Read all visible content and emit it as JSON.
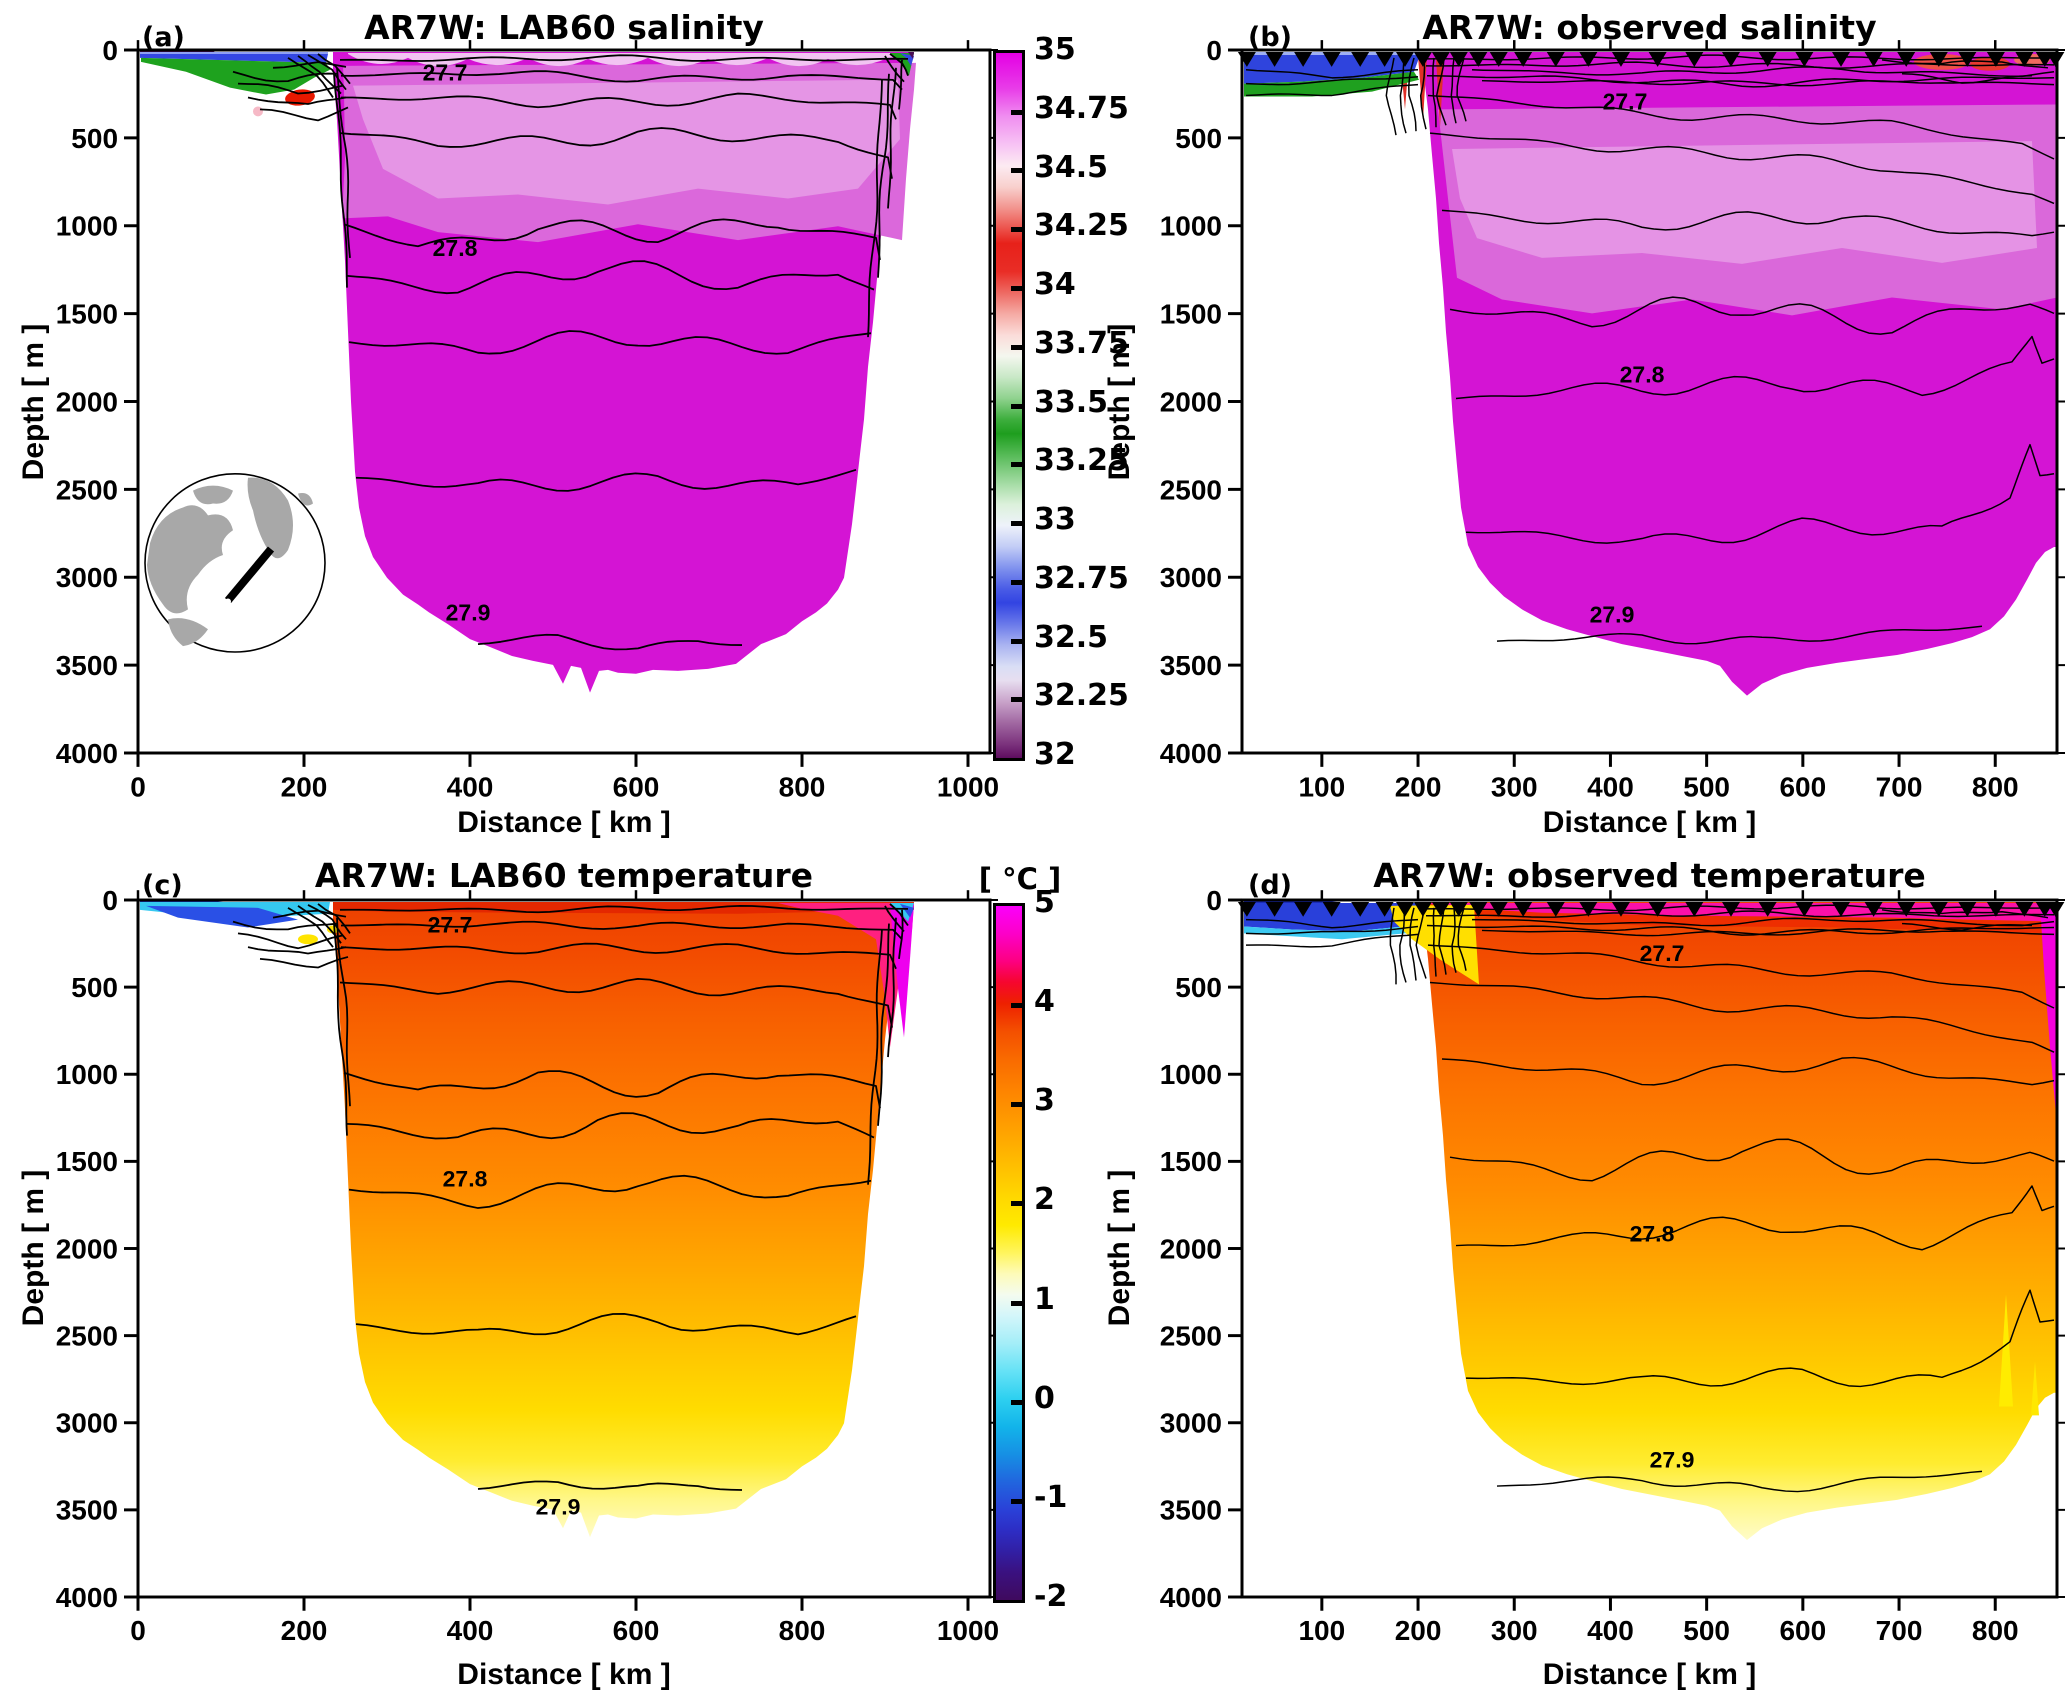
{
  "panels": {
    "a": {
      "letter": "(a)",
      "title": "AR7W: LAB60 salinity",
      "xlabel": "Distance [ km ]",
      "ylabel": "Depth [ m ]",
      "xticks": [
        "0",
        "200",
        "400",
        "600",
        "800",
        "1000"
      ],
      "yticks": [
        "0",
        "500",
        "1000",
        "1500",
        "2000",
        "2500",
        "3000",
        "3500",
        "4000"
      ],
      "contour_labels": [
        "27.7",
        "27.8",
        "27.9"
      ]
    },
    "b": {
      "letter": "(b)",
      "title": "AR7W: observed salinity",
      "xlabel": "Distance [ km ]",
      "ylabel": "Depth [ m ]",
      "xticks": [
        "100",
        "200",
        "300",
        "400",
        "500",
        "600",
        "700",
        "800"
      ],
      "yticks": [
        "0",
        "500",
        "1000",
        "1500",
        "2000",
        "2500",
        "3000",
        "3500",
        "4000"
      ],
      "contour_labels": [
        "27.7",
        "27.8",
        "27.9"
      ]
    },
    "c": {
      "letter": "(c)",
      "title": "AR7W: LAB60 temperature",
      "xlabel": "Distance [ km ]",
      "ylabel": "Depth [ m ]",
      "xticks": [
        "0",
        "200",
        "400",
        "600",
        "800",
        "1000"
      ],
      "yticks": [
        "0",
        "500",
        "1000",
        "1500",
        "2000",
        "2500",
        "3000",
        "3500",
        "4000"
      ],
      "contour_labels": [
        "27.7",
        "27.8",
        "27.9"
      ]
    },
    "d": {
      "letter": "(d)",
      "title": "AR7W: observed temperature",
      "xlabel": "Distance [ km ]",
      "ylabel": "Depth [ m ]",
      "xticks": [
        "100",
        "200",
        "300",
        "400",
        "500",
        "600",
        "700",
        "800"
      ],
      "yticks": [
        "0",
        "500",
        "1000",
        "1500",
        "2000",
        "2500",
        "3000",
        "3500",
        "4000"
      ],
      "contour_labels": [
        "27.7",
        "27.8",
        "27.9"
      ]
    }
  },
  "colorbar_salinity": {
    "ticks": [
      "35",
      "34.75",
      "34.5",
      "34.25",
      "34",
      "33.75",
      "33.5",
      "33.25",
      "33",
      "32.75",
      "32.5",
      "32.25",
      "32"
    ],
    "gradient": [
      {
        "p": 0,
        "c": "#e400e4"
      },
      {
        "p": 5,
        "c": "#e83ce8"
      },
      {
        "p": 9,
        "c": "#f08ef0"
      },
      {
        "p": 13,
        "c": "#f7c3f4"
      },
      {
        "p": 16,
        "c": "#fcebf2"
      },
      {
        "p": 19,
        "c": "#f8d0cd"
      },
      {
        "p": 22,
        "c": "#f2948e"
      },
      {
        "p": 25,
        "c": "#ec5049"
      },
      {
        "p": 27,
        "c": "#e7211a"
      },
      {
        "p": 31,
        "c": "#e92d26"
      },
      {
        "p": 34,
        "c": "#ee6a63"
      },
      {
        "p": 37,
        "c": "#f5aaa4"
      },
      {
        "p": 40,
        "c": "#fbdcd9"
      },
      {
        "p": 43,
        "c": "#f4f7ef"
      },
      {
        "p": 46,
        "c": "#c8e8c6"
      },
      {
        "p": 49,
        "c": "#8fd28e"
      },
      {
        "p": 52,
        "c": "#3dae3d"
      },
      {
        "p": 54,
        "c": "#1e9e1e"
      },
      {
        "p": 57,
        "c": "#56ba57"
      },
      {
        "p": 61,
        "c": "#a3dba3"
      },
      {
        "p": 64,
        "c": "#dcf1db"
      },
      {
        "p": 67,
        "c": "#eef2fa"
      },
      {
        "p": 70,
        "c": "#c3cdf6"
      },
      {
        "p": 73,
        "c": "#8193ee"
      },
      {
        "p": 76,
        "c": "#4a5ce6"
      },
      {
        "p": 78,
        "c": "#3244e2"
      },
      {
        "p": 81,
        "c": "#6a79ea"
      },
      {
        "p": 84,
        "c": "#aab4f1"
      },
      {
        "p": 87,
        "c": "#d9def5"
      },
      {
        "p": 89,
        "c": "#e7def0"
      },
      {
        "p": 92,
        "c": "#c9a3ca"
      },
      {
        "p": 95,
        "c": "#a168a2"
      },
      {
        "p": 98,
        "c": "#7c337d"
      },
      {
        "p": 100,
        "c": "#5e0d60"
      }
    ]
  },
  "colorbar_temperature": {
    "unit_label": "[ °C ]",
    "ticks": [
      "5",
      "4",
      "3",
      "2",
      "1",
      "0",
      "-1",
      "-2"
    ],
    "gradient": [
      {
        "p": 0,
        "c": "#fb00fb"
      },
      {
        "p": 4,
        "c": "#fc00c8"
      },
      {
        "p": 8,
        "c": "#fd0080"
      },
      {
        "p": 11,
        "c": "#f6062e"
      },
      {
        "p": 14,
        "c": "#ee2000"
      },
      {
        "p": 18,
        "c": "#f44f00"
      },
      {
        "p": 22,
        "c": "#f96a00"
      },
      {
        "p": 27,
        "c": "#fe8600"
      },
      {
        "p": 32,
        "c": "#ffa000"
      },
      {
        "p": 37,
        "c": "#ffbc00"
      },
      {
        "p": 42,
        "c": "#ffd800"
      },
      {
        "p": 46,
        "c": "#ffea00"
      },
      {
        "p": 50,
        "c": "#fff55e"
      },
      {
        "p": 53,
        "c": "#fdfbb8"
      },
      {
        "p": 56,
        "c": "#f4fbef"
      },
      {
        "p": 59,
        "c": "#d4f6fa"
      },
      {
        "p": 63,
        "c": "#a4eef8"
      },
      {
        "p": 67,
        "c": "#66e2f6"
      },
      {
        "p": 71,
        "c": "#2ed0f0"
      },
      {
        "p": 75,
        "c": "#12b4ea"
      },
      {
        "p": 79,
        "c": "#1690e4"
      },
      {
        "p": 83,
        "c": "#2165de"
      },
      {
        "p": 87,
        "c": "#2a41d8"
      },
      {
        "p": 90,
        "c": "#2d2dc4"
      },
      {
        "p": 93,
        "c": "#311fa4"
      },
      {
        "p": 96,
        "c": "#3a1180"
      },
      {
        "p": 100,
        "c": "#3f0a5e"
      }
    ]
  },
  "station_markers": {
    "applies_to": [
      "b",
      "d"
    ],
    "positions_rel": [
      0.006,
      0.04,
      0.075,
      0.11,
      0.145,
      0.175,
      0.2,
      0.222,
      0.244,
      0.266,
      0.29,
      0.315,
      0.345,
      0.385,
      0.425,
      0.465,
      0.51,
      0.555,
      0.6,
      0.645,
      0.69,
      0.735,
      0.775,
      0.815,
      0.855,
      0.89,
      0.925,
      0.96,
      0.985,
      0.998
    ]
  },
  "accent_colors": {
    "deep_magenta": "#d414d4",
    "light_magenta": "#e595e5",
    "shelf_blue": "#3447e2",
    "shelf_green": "#1ea21e",
    "warm_orange": "#ff8c00",
    "bottom_yellow": "#ffec30",
    "land_gray": "#a8a8a8"
  },
  "chart_data": [
    {
      "type": "heatmap",
      "panel": "a",
      "title": "AR7W: LAB60 salinity",
      "dataset": "LAB60",
      "variable": "salinity",
      "xlabel": "Distance [ km ]",
      "ylabel": "Depth [ m ]",
      "xticks": [
        0,
        200,
        400,
        600,
        800,
        1000
      ],
      "yticks": [
        0,
        500,
        1000,
        1500,
        2000,
        2500,
        3000,
        3500,
        4000
      ],
      "xlim_km": [
        0,
        1030
      ],
      "depth_range_m": [
        0,
        4000
      ],
      "colorbar_range": [
        32,
        35
      ],
      "colorbar_tick_step": 0.25,
      "interior_salinity_approx": [
        34.75,
        34.95
      ],
      "shelf_surface_salinity_approx": [
        32,
        33.5
      ],
      "density_contours_sigma_theta": {
        "labeled": [
          27.7,
          27.8,
          27.9
        ],
        "approx_label_depths_m": [
          170,
          1200,
          3300
        ]
      },
      "section_extent_km": [
        0,
        930
      ],
      "max_depth_of_data_m": 3650,
      "no_data_color": "white",
      "inset": "circular polar map with thick black line marking the AR7W section between Labrador and Greenland"
    },
    {
      "type": "heatmap",
      "panel": "b",
      "title": "AR7W: observed salinity",
      "dataset": "observations",
      "variable": "salinity",
      "xlabel": "Distance [ km ]",
      "ylabel": "Depth [ m ]",
      "xticks": [
        100,
        200,
        300,
        400,
        500,
        600,
        700,
        800
      ],
      "yticks": [
        0,
        500,
        1000,
        1500,
        2000,
        2500,
        3000,
        3500,
        4000
      ],
      "xlim_km": [
        17,
        866
      ],
      "depth_range_m": [
        0,
        4000
      ],
      "colorbar_range": [
        32,
        35
      ],
      "station_marker_count": 30,
      "interior_salinity_approx": [
        34.75,
        34.95
      ],
      "shelf_surface_salinity_approx": [
        32,
        33.5
      ],
      "density_contours_sigma_theta": {
        "labeled": [
          27.7,
          27.8,
          27.9
        ],
        "approx_label_depths_m": [
          350,
          1900,
          3250
        ]
      },
      "max_depth_of_data_m": 3700,
      "no_data_color": "white"
    },
    {
      "type": "heatmap",
      "panel": "c",
      "title": "AR7W: LAB60 temperature",
      "dataset": "LAB60",
      "variable": "temperature_degC",
      "xlabel": "Distance [ km ]",
      "ylabel": "Depth [ m ]",
      "xticks": [
        0,
        200,
        400,
        600,
        800,
        1000
      ],
      "yticks": [
        0,
        500,
        1000,
        1500,
        2000,
        2500,
        3000,
        3500,
        4000
      ],
      "xlim_km": [
        0,
        1030
      ],
      "depth_range_m": [
        0,
        4000
      ],
      "colorbar_range": [
        -2,
        5
      ],
      "colorbar_unit": "[ °C ]",
      "interior_temperature_approx_degC": {
        "upper_1000m": 3.4,
        "bottom_3500m": 1.9
      },
      "shelf_surface_temperature_approx_degC": [
        -1,
        1
      ],
      "warm_boundary_current_degC": [
        4,
        5
      ],
      "density_contours_sigma_theta": {
        "labeled": [
          27.7,
          27.8,
          27.9
        ]
      },
      "section_extent_km": [
        0,
        930
      ],
      "max_depth_of_data_m": 3650,
      "no_data_color": "white"
    },
    {
      "type": "heatmap",
      "panel": "d",
      "title": "AR7W: observed temperature",
      "dataset": "observations",
      "variable": "temperature_degC",
      "xlabel": "Distance [ km ]",
      "ylabel": "Depth [ m ]",
      "xticks": [
        100,
        200,
        300,
        400,
        500,
        600,
        700,
        800
      ],
      "yticks": [
        0,
        500,
        1000,
        1500,
        2000,
        2500,
        3000,
        3500,
        4000
      ],
      "xlim_km": [
        17,
        866
      ],
      "depth_range_m": [
        0,
        4000
      ],
      "colorbar_range": [
        -2,
        5
      ],
      "station_marker_count": 30,
      "interior_temperature_approx_degC": {
        "upper_1000m": 3.4,
        "bottom_3500m": 1.9
      },
      "shelf_surface_temperature_approx_degC": [
        -1,
        1
      ],
      "warm_boundary_current_degC": [
        4,
        5
      ],
      "density_contours_sigma_theta": {
        "labeled": [
          27.7,
          27.8,
          27.9
        ]
      },
      "max_depth_of_data_m": 3700,
      "no_data_color": "white"
    }
  ]
}
